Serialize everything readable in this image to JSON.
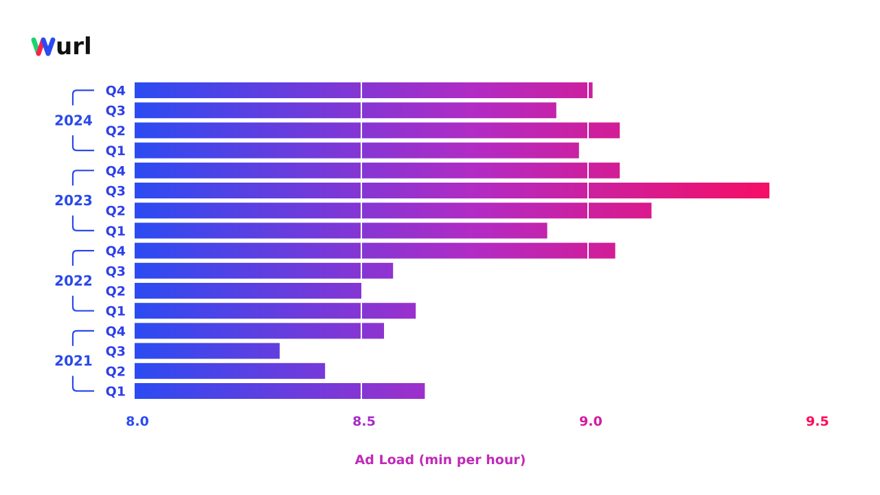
{
  "logo": {
    "text": "wurl"
  },
  "colors": {
    "bar_start": "#2b4bf2",
    "bar_mid": "#a82bc8",
    "bar_end": "#ff0a57",
    "bracket": "#2a49e8"
  },
  "chart_data": {
    "type": "bar",
    "orientation": "horizontal",
    "xlabel": "Ad Load (min per hour)",
    "xlim": [
      8.0,
      9.5
    ],
    "xticks": [
      "8.0",
      "8.5",
      "9.0",
      "9.5"
    ],
    "grid": true,
    "groups": [
      {
        "name": "2024",
        "categories": [
          "Q4",
          "Q3",
          "Q2",
          "Q1"
        ],
        "values": [
          9.01,
          8.93,
          9.07,
          8.98
        ]
      },
      {
        "name": "2023",
        "categories": [
          "Q4",
          "Q3",
          "Q2",
          "Q1"
        ],
        "values": [
          9.07,
          9.4,
          9.14,
          8.91
        ]
      },
      {
        "name": "2022",
        "categories": [
          "Q4",
          "Q3",
          "Q2",
          "Q1"
        ],
        "values": [
          9.06,
          8.57,
          8.5,
          8.62
        ]
      },
      {
        "name": "2021",
        "categories": [
          "Q4",
          "Q3",
          "Q2",
          "Q1"
        ],
        "values": [
          8.55,
          8.32,
          8.42,
          8.64
        ]
      }
    ]
  }
}
